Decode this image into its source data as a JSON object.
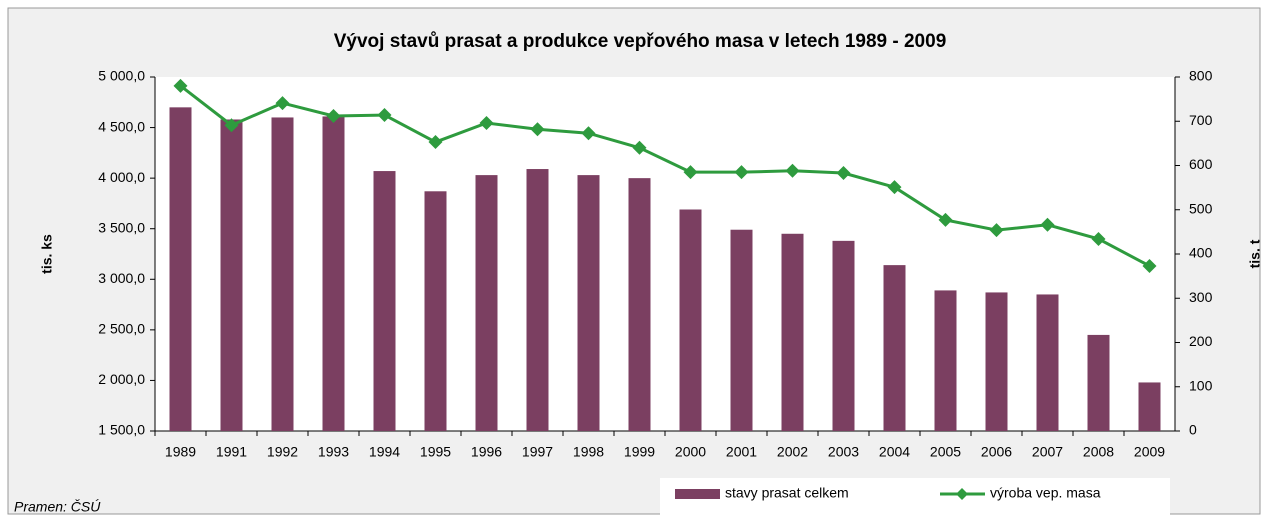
{
  "chart_data": {
    "type": "bar",
    "title": "Vývoj stavů prasat  a produkce vepřového masa v letech 1989 - 2009",
    "y_label": "tis. ks",
    "y2_label": "tis. t",
    "source": "Pramen: ČSÚ",
    "categories": [
      "1989",
      "1991",
      "1992",
      "1993",
      "1994",
      "1995",
      "1996",
      "1997",
      "1998",
      "1999",
      "2000",
      "2001",
      "2002",
      "2003",
      "2004",
      "2005",
      "2006",
      "2007",
      "2008",
      "2009"
    ],
    "series": [
      {
        "name": "stavy prasat celkem",
        "color": "#7b3f61",
        "values": [
          4700,
          4580,
          4600,
          4610,
          4070,
          3870,
          4030,
          4090,
          4030,
          4000,
          3690,
          3490,
          3450,
          3380,
          3140,
          2890,
          2870,
          2850,
          2450,
          1980
        ]
      },
      {
        "name": "výroba vep. masa",
        "color": "#2e9b3e",
        "axis": "y2",
        "type": "line",
        "values": [
          780,
          691,
          741,
          712,
          714,
          653,
          696,
          682,
          673,
          640,
          585,
          585,
          588,
          583,
          551,
          477,
          454,
          466,
          434,
          373
        ]
      }
    ],
    "ylim": [
      1500,
      5000
    ],
    "yticks": [
      {
        "value": 1500,
        "label": "1 500,0"
      },
      {
        "value": 2000,
        "label": "2 000,0"
      },
      {
        "value": 2500,
        "label": "2 500,0"
      },
      {
        "value": 3000,
        "label": "3 000,0"
      },
      {
        "value": 3500,
        "label": "3 500,0"
      },
      {
        "value": 4000,
        "label": "4 000,0"
      },
      {
        "value": 4500,
        "label": "4 500,0"
      },
      {
        "value": 5000,
        "label": "5 000,0"
      }
    ],
    "y2lim": [
      0,
      800
    ],
    "y2ticks": [
      0,
      100,
      200,
      300,
      400,
      500,
      600,
      700,
      800
    ]
  }
}
